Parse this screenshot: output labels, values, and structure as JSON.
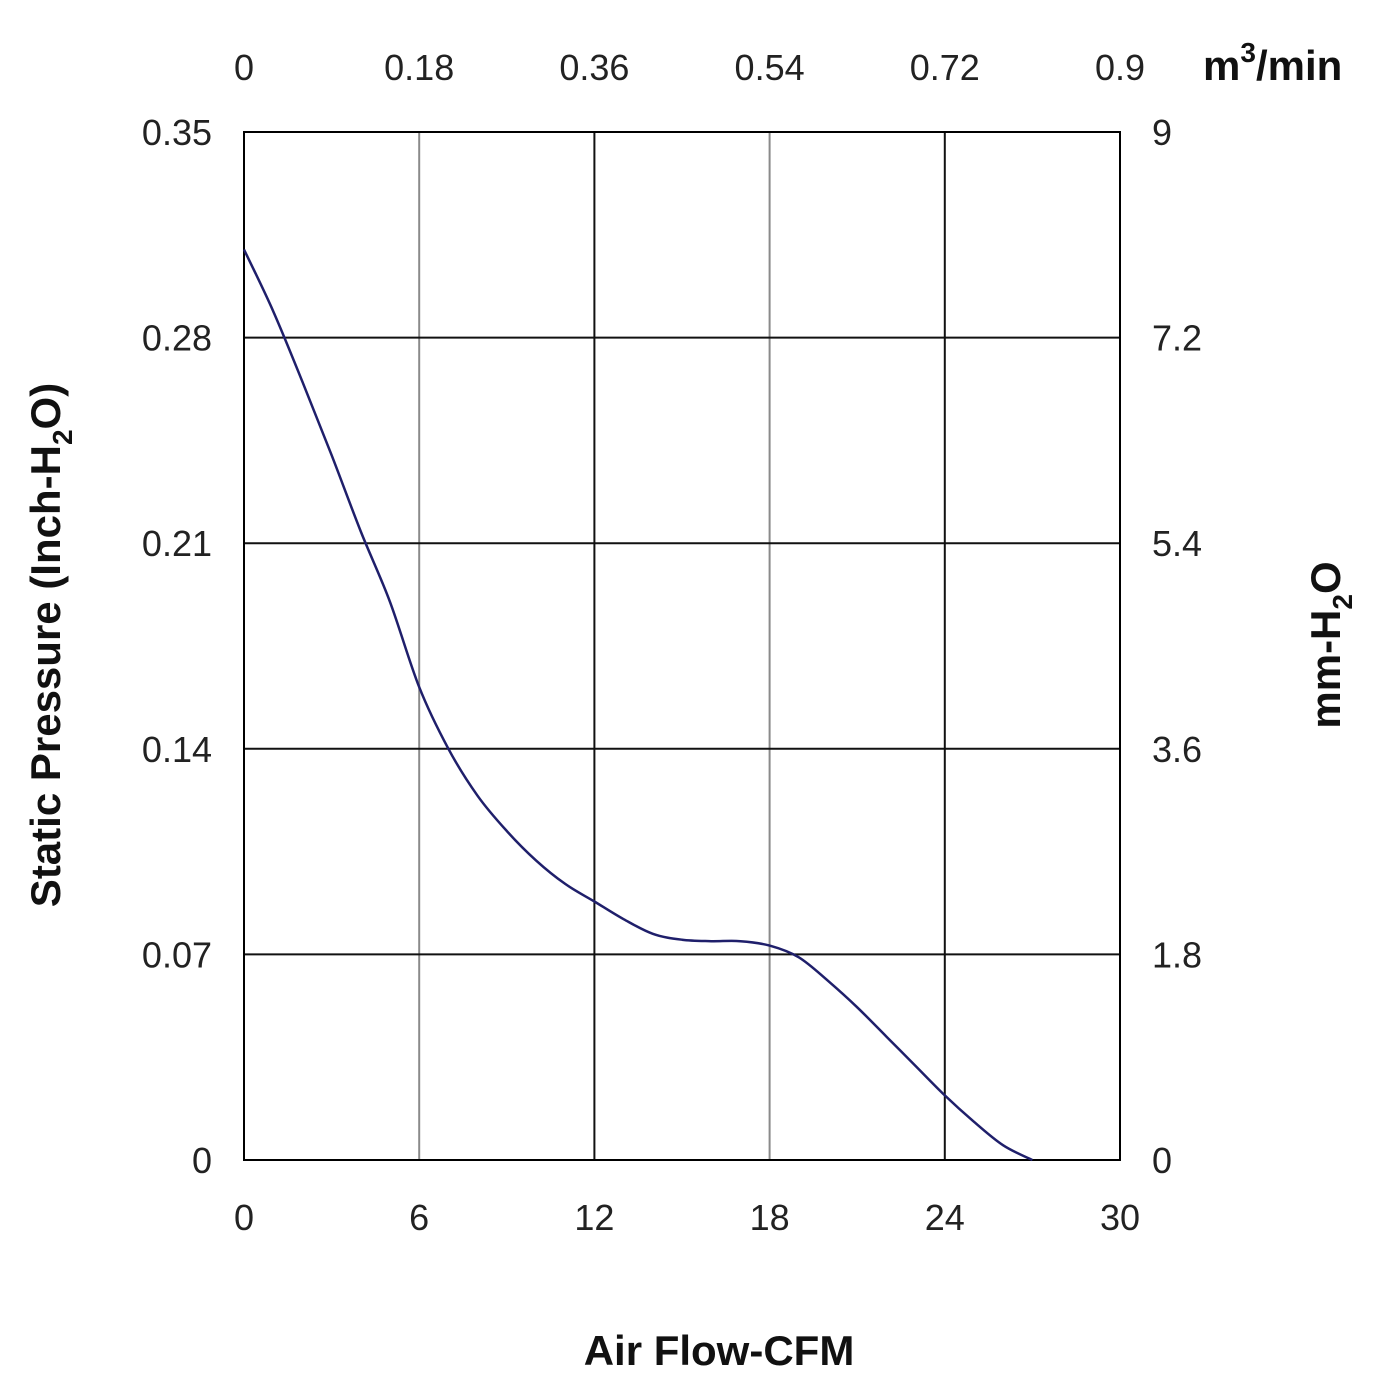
{
  "chart_data": {
    "type": "line",
    "title": "",
    "xlabel": "Air Flow-CFM",
    "ylabel": {
      "before": "Static Pressure (Inch-H",
      "sub": "2",
      "after": "O)"
    },
    "y2label": {
      "before": "mm-H",
      "sub": "2",
      "after": "O"
    },
    "x2label": {
      "before": "m",
      "sup": "3",
      "after": "/min"
    },
    "xlim": [
      0,
      30
    ],
    "ylim": [
      0,
      0.35
    ],
    "xticks": [
      "0",
      "6",
      "12",
      "18",
      "24",
      "30"
    ],
    "x_top_ticks": [
      "0",
      "0.18",
      "0.36",
      "0.54",
      "0.72",
      "0.9"
    ],
    "yticks": [
      "0",
      "0.07",
      "0.14",
      "0.21",
      "0.28",
      "0.35"
    ],
    "y_right_ticks": [
      "0",
      "1.8",
      "3.6",
      "5.4",
      "7.2",
      "9"
    ],
    "grid": true,
    "series": [
      {
        "color": "#1f1f6b",
        "x": [
          0,
          1,
          2,
          3,
          4,
          5,
          6,
          7,
          8,
          9,
          10,
          11,
          12,
          13,
          14,
          15,
          16,
          17,
          18,
          19,
          20,
          21,
          22,
          23,
          24,
          25,
          26,
          27
        ],
        "y": [
          0.31,
          0.289,
          0.265,
          0.24,
          0.214,
          0.19,
          0.161,
          0.14,
          0.124,
          0.112,
          0.102,
          0.094,
          0.088,
          0.082,
          0.077,
          0.075,
          0.0745,
          0.0745,
          0.073,
          0.069,
          0.061,
          0.052,
          0.042,
          0.032,
          0.022,
          0.013,
          0.005,
          0.0
        ]
      }
    ]
  }
}
